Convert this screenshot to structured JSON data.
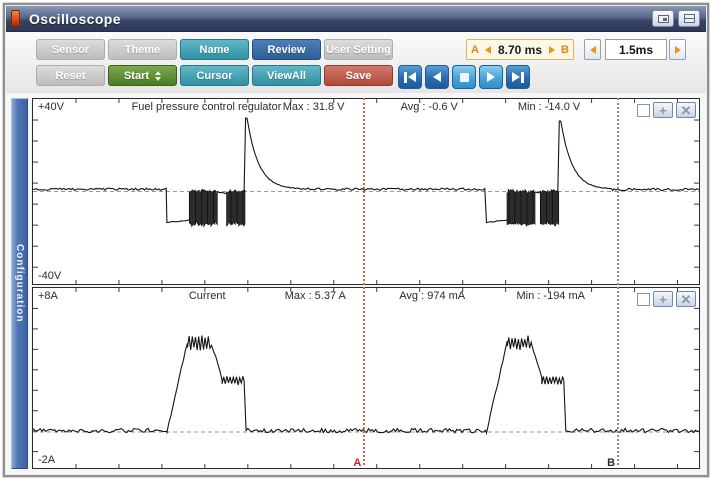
{
  "window": {
    "title": "Oscilloscope"
  },
  "toolbar": {
    "sensor": "Sensor",
    "theme": "Theme",
    "name": "Name",
    "review": "Review",
    "user_setting": "User Setting",
    "reset": "Reset",
    "start": "Start",
    "cursor": "Cursor",
    "viewall": "ViewAll",
    "save": "Save"
  },
  "time_controls": {
    "a_label": "A",
    "b_label": "B",
    "ab_time": "8.70 ms",
    "timebase": "1.5ms"
  },
  "sidebar": {
    "label": "Configuration"
  },
  "cursors": {
    "a_label": "A",
    "b_label": "B",
    "a_pos": 0.496,
    "b_pos": 0.876
  },
  "colors": {
    "titlebar": "#364262",
    "accent_teal": "#2f90a5",
    "accent_dark_blue": "#2e5e95",
    "accent_green": "#4c7a26",
    "accent_red": "#b14938",
    "playback_blue": "#2a6bb0",
    "ab_accent": "#e8820e",
    "cursor_a": "#ec5a4e",
    "cursor_b": "#8a8a8a",
    "sidebar_blue": "#3d63a4"
  },
  "chart_data": [
    {
      "type": "line",
      "title": "Fuel pressure control regulator",
      "unit": "V",
      "y_top_label": "+40V",
      "y_bottom_label": "-40V",
      "y_range": [
        -40,
        40
      ],
      "grid": "edge-ticks",
      "stats": {
        "max": "Max : 31.8 V",
        "avg": "Avg : -0.6 V",
        "min": "Min : -14.0 V"
      },
      "segments": [
        {
          "type": "flat",
          "t0": 0,
          "t1": 0.201,
          "v": 1.0,
          "noise": 0.5
        },
        {
          "type": "ramp",
          "t0": 0.201,
          "t1": 0.235,
          "v0": -13.4,
          "v1": -12.3,
          "noise": 0.25
        },
        {
          "type": "pwm",
          "t0": 0.235,
          "t1": 0.277,
          "hi": 0,
          "lo": -14
        },
        {
          "type": "flat",
          "t0": 0.277,
          "t1": 0.291,
          "v": -0.5,
          "noise": 0.4
        },
        {
          "type": "pwm",
          "t0": 0.291,
          "t1": 0.317,
          "hi": 0,
          "lo": -14
        },
        {
          "type": "spike",
          "t0": 0.317,
          "t1": 0.4,
          "peak": 31.8,
          "end": 1.0
        },
        {
          "type": "flat",
          "t0": 0.4,
          "t1": 0.681,
          "v": 1.0,
          "noise": 0.5
        },
        {
          "type": "ramp",
          "t0": 0.681,
          "t1": 0.712,
          "v0": -13.4,
          "v1": -12.3,
          "noise": 0.25
        },
        {
          "type": "pwm",
          "t0": 0.712,
          "t1": 0.752,
          "hi": 0,
          "lo": -14
        },
        {
          "type": "flat",
          "t0": 0.752,
          "t1": 0.762,
          "v": -0.5,
          "noise": 0.4
        },
        {
          "type": "pwm",
          "t0": 0.762,
          "t1": 0.788,
          "hi": 0,
          "lo": -14
        },
        {
          "type": "spike",
          "t0": 0.788,
          "t1": 0.87,
          "peak": 30.5,
          "end": 0.9
        },
        {
          "type": "flat",
          "t0": 0.87,
          "t1": 1,
          "v": 0.9,
          "noise": 0.5
        }
      ]
    },
    {
      "type": "line",
      "title": "Current",
      "unit": "A",
      "y_top_label": "+8A",
      "y_bottom_label": "-2A",
      "y_range": [
        -2,
        8
      ],
      "grid": "edge-ticks",
      "stats": {
        "max": "Max : 5.37 A",
        "avg": "Avg : 974 mA",
        "min": "Min : -194 mA"
      },
      "segments": [
        {
          "type": "flat",
          "t0": 0,
          "t1": 0.201,
          "v": 0.08,
          "noise": 0.12
        },
        {
          "type": "ramp",
          "t0": 0.201,
          "t1": 0.232,
          "v0": 0,
          "v1": 5.0,
          "noise": 0.08
        },
        {
          "type": "ripple",
          "t0": 0.232,
          "t1": 0.268,
          "v": 4.95,
          "amp": 0.3
        },
        {
          "type": "ramp",
          "t0": 0.268,
          "t1": 0.284,
          "v0": 4.9,
          "v1": 2.95,
          "noise": 0.1
        },
        {
          "type": "ripple",
          "t0": 0.284,
          "t1": 0.317,
          "v": 2.85,
          "amp": 0.18
        },
        {
          "type": "ramp",
          "t0": 0.317,
          "t1": 0.32,
          "v0": 2.85,
          "v1": 0.05,
          "noise": 0
        },
        {
          "type": "flat",
          "t0": 0.32,
          "t1": 0.681,
          "v": 0.08,
          "noise": 0.12
        },
        {
          "type": "ramp",
          "t0": 0.681,
          "t1": 0.712,
          "v0": 0,
          "v1": 5.0,
          "noise": 0.08
        },
        {
          "type": "ripple",
          "t0": 0.712,
          "t1": 0.748,
          "v": 4.95,
          "amp": 0.3
        },
        {
          "type": "ramp",
          "t0": 0.748,
          "t1": 0.764,
          "v0": 4.9,
          "v1": 2.95,
          "noise": 0.1
        },
        {
          "type": "ripple",
          "t0": 0.764,
          "t1": 0.797,
          "v": 2.85,
          "amp": 0.18
        },
        {
          "type": "ramp",
          "t0": 0.797,
          "t1": 0.8,
          "v0": 2.85,
          "v1": 0.05,
          "noise": 0
        },
        {
          "type": "flat",
          "t0": 0.8,
          "t1": 1,
          "v": 0.08,
          "noise": 0.12
        }
      ]
    }
  ]
}
